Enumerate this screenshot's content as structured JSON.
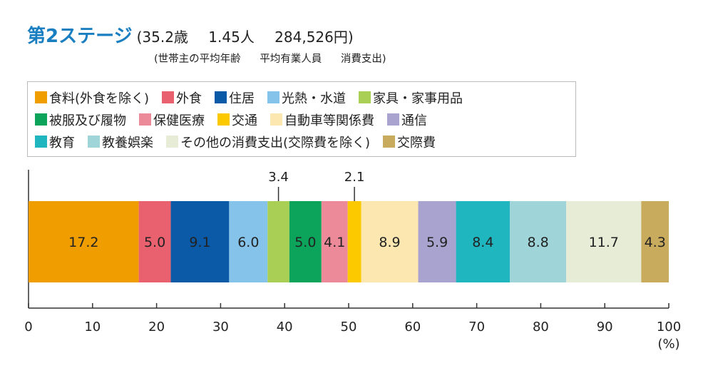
{
  "header": {
    "title": "第2ステージ",
    "stats": [
      "(35.2歳",
      "1.45人",
      "284,526円)"
    ],
    "stat_labels": [
      "(世帯主の平均年齢",
      "平均有業人員",
      "消費支出)"
    ]
  },
  "chart_data": {
    "type": "bar",
    "orientation": "horizontal-stacked",
    "categories": [
      "食料(外食を除く)",
      "外食",
      "住居",
      "光熱・水道",
      "家具・家事用品",
      "被服及び履物",
      "保健医療",
      "交通",
      "自動車等関係費",
      "通信",
      "教育",
      "教養娯楽",
      "その他の消費支出(交際費を除く)",
      "交際費"
    ],
    "values": [
      17.2,
      5.0,
      9.1,
      6.0,
      3.4,
      5.0,
      4.1,
      2.1,
      8.9,
      5.9,
      8.4,
      8.8,
      11.7,
      4.3
    ],
    "value_labels": [
      "17.2",
      "5.0",
      "9.1",
      "6.0",
      "3.4",
      "5.0",
      "4.1",
      "2.1",
      "8.9",
      "5.9",
      "8.4",
      "8.8",
      "11.7",
      "4.3"
    ],
    "colors": [
      "#f09d00",
      "#e9616f",
      "#0a5aa8",
      "#86c3ea",
      "#a9cf55",
      "#0ba45a",
      "#ec8a9a",
      "#fcc800",
      "#fde7b0",
      "#a9a3cf",
      "#1fb6c0",
      "#9fd5d9",
      "#e7ecd6",
      "#c9ab5e"
    ],
    "outside_label_indices": [
      4,
      7
    ],
    "xlim": [
      0,
      100
    ],
    "xticks": [
      "0",
      "10",
      "20",
      "30",
      "40",
      "50",
      "60",
      "70",
      "80",
      "90",
      "100"
    ],
    "xunit": "(%)",
    "legend_position": "top"
  }
}
